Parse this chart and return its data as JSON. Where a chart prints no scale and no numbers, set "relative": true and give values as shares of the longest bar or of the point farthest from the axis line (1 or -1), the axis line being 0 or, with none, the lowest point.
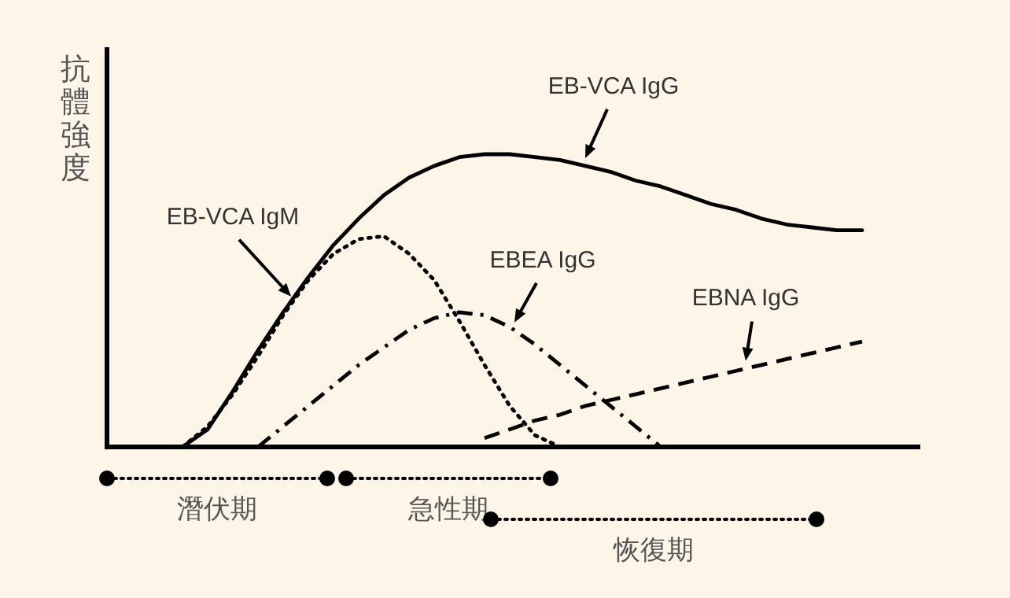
{
  "chart_data": {
    "type": "line",
    "relative": true,
    "ylabel": "抗體強度",
    "categories": [
      null,
      null,
      null,
      null,
      null,
      null,
      null,
      null,
      null,
      null,
      null,
      null,
      null,
      null,
      null,
      null,
      null,
      null,
      null,
      null,
      null,
      null,
      null,
      null,
      null,
      null,
      null,
      null,
      null,
      null,
      null,
      null,
      null
    ],
    "series": [
      {
        "name": "EB-VCA IgG",
        "color": "#000000",
        "line_style": "solid",
        "values": [
          null,
          null,
          null,
          0,
          0.06,
          0.19,
          0.33,
          0.46,
          0.58,
          0.69,
          0.78,
          0.86,
          0.92,
          0.96,
          0.99,
          1,
          1,
          0.99,
          0.98,
          0.96,
          0.94,
          0.91,
          0.89,
          0.86,
          0.83,
          0.81,
          0.78,
          0.76,
          0.75,
          0.74,
          0.74,
          null,
          null
        ]
      },
      {
        "name": "EB-VCA IgM",
        "color": "#000000",
        "line_style": "dotted",
        "values": [
          null,
          null,
          null,
          0,
          0.07,
          0.18,
          0.31,
          0.45,
          0.57,
          0.66,
          0.71,
          0.72,
          0.66,
          0.57,
          0.43,
          0.28,
          0.14,
          0.04,
          0,
          null,
          null,
          null,
          null,
          null,
          null,
          null,
          null,
          null,
          null,
          null,
          null,
          null,
          null
        ]
      },
      {
        "name": "EBEA IgG",
        "color": "#000000",
        "line_style": "dashdot",
        "values": [
          null,
          null,
          null,
          null,
          null,
          null,
          0,
          0.07,
          0.14,
          0.21,
          0.28,
          0.34,
          0.4,
          0.44,
          0.46,
          0.45,
          0.41,
          0.35,
          0.28,
          0.21,
          0.14,
          0.07,
          0,
          null,
          null,
          null,
          null,
          null,
          null,
          null,
          null,
          null,
          null
        ]
      },
      {
        "name": "EBNA IgG",
        "color": "#000000",
        "line_style": "dashed",
        "values": [
          null,
          null,
          null,
          null,
          null,
          null,
          null,
          null,
          null,
          null,
          null,
          null,
          null,
          null,
          null,
          0.03,
          0.06,
          0.09,
          0.11,
          0.14,
          0.16,
          0.18,
          0.2,
          0.22,
          0.24,
          0.26,
          0.28,
          0.3,
          0.32,
          0.34,
          0.36,
          null,
          null
        ]
      }
    ],
    "annotations": [
      "潛伏期",
      "急性期",
      "恢復期"
    ]
  }
}
